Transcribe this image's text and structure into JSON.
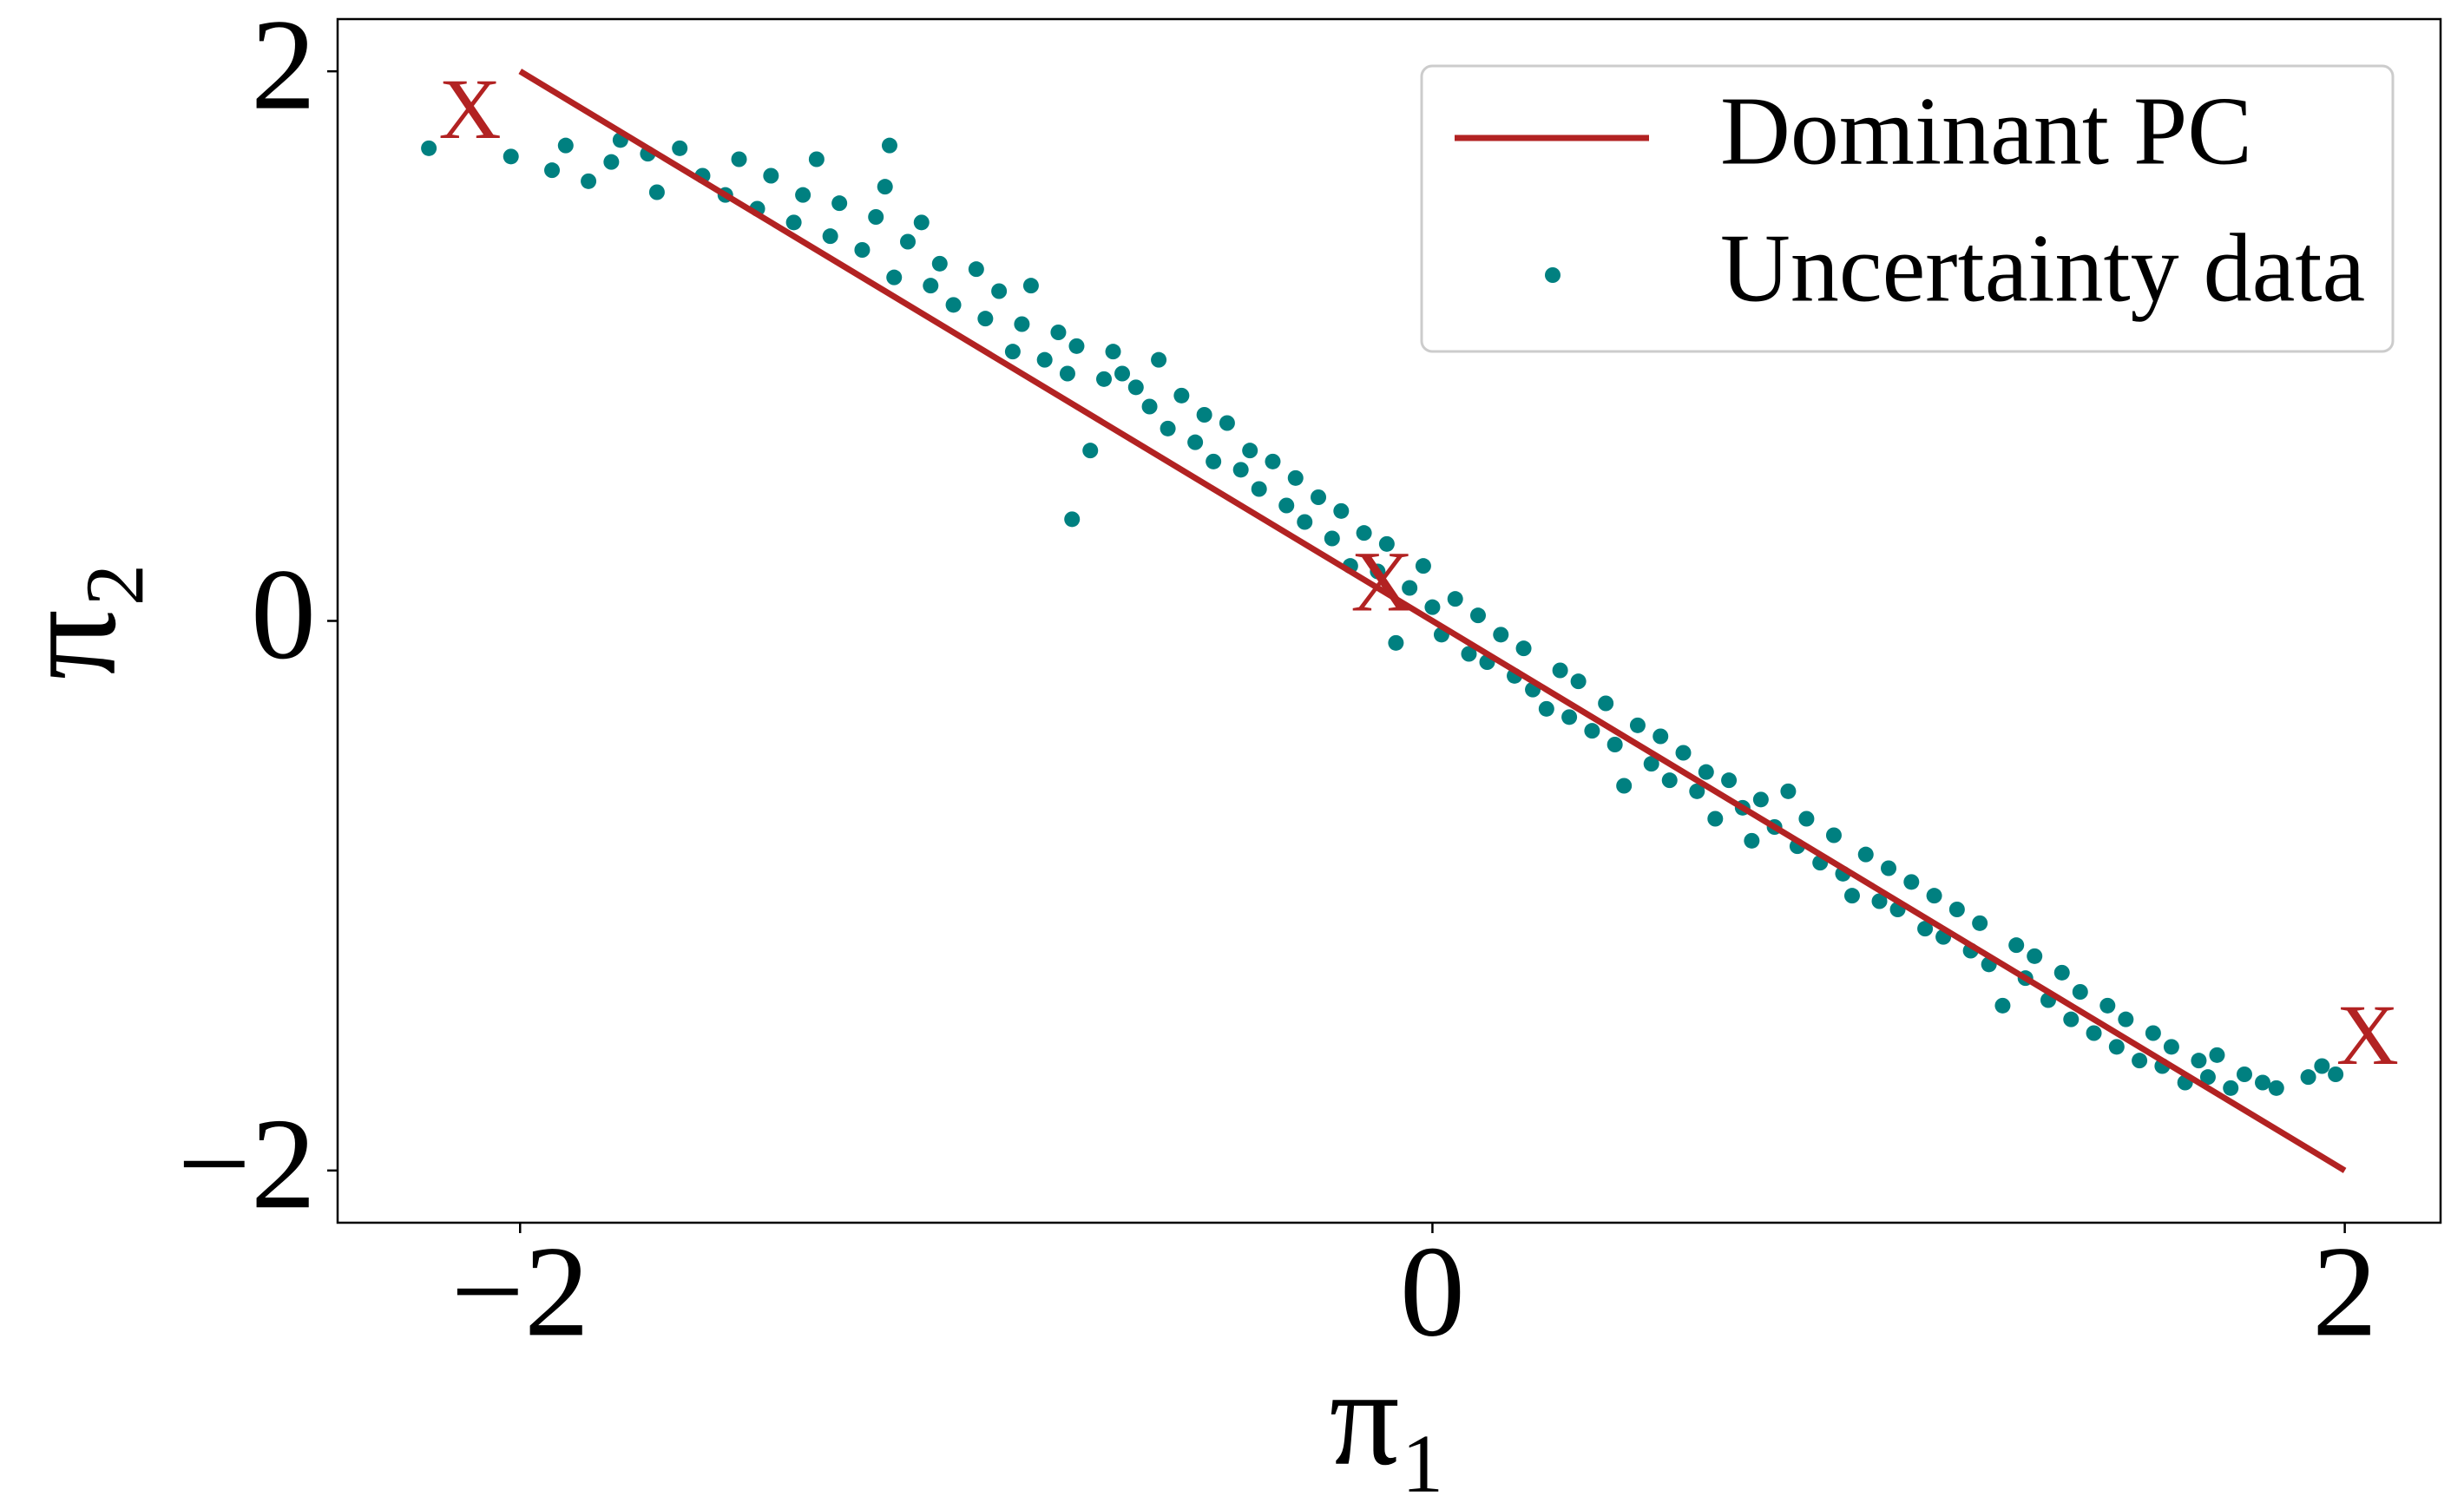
{
  "chart_data": {
    "type": "scatter",
    "xlabel": "π₁",
    "ylabel": "π₂",
    "xlim": [
      -2.4,
      2.21
    ],
    "ylim": [
      -2.19,
      2.19
    ],
    "xticks": [
      {
        "value": -2,
        "label": "−2"
      },
      0,
      2
    ],
    "yticks": [
      {
        "value": -2,
        "label": "−2"
      },
      0,
      2
    ],
    "legend": "upper right",
    "series": [
      {
        "name": "Dominant PC",
        "type": "line",
        "color": "#b22222",
        "x": [
          -2,
          2
        ],
        "values": [
          2,
          -2
        ]
      },
      {
        "name": "Uncertainty data",
        "type": "scatter",
        "color": "#008080",
        "x": [
          -2.2,
          -2.02,
          -1.93,
          -1.9,
          -1.85,
          -1.8,
          -1.78,
          -1.72,
          -1.7,
          -1.65,
          -1.6,
          -1.55,
          -1.52,
          -1.48,
          -1.45,
          -1.4,
          -1.38,
          -1.35,
          -1.32,
          -1.3,
          -1.25,
          -1.22,
          -1.2,
          -1.19,
          -1.18,
          -1.15,
          -1.12,
          -1.1,
          -1.08,
          -1.05,
          -1.0,
          -0.98,
          -0.95,
          -0.92,
          -0.9,
          -0.88,
          -0.85,
          -0.82,
          -0.8,
          -0.79,
          -0.78,
          -0.75,
          -0.72,
          -0.7,
          -0.68,
          -0.65,
          -0.62,
          -0.6,
          -0.58,
          -0.55,
          -0.52,
          -0.5,
          -0.48,
          -0.45,
          -0.42,
          -0.4,
          -0.38,
          -0.35,
          -0.32,
          -0.3,
          -0.28,
          -0.25,
          -0.22,
          -0.2,
          -0.18,
          -0.15,
          -0.12,
          -0.1,
          -0.08,
          -0.05,
          -0.02,
          0,
          0.02,
          0.05,
          0.08,
          0.1,
          0.12,
          0.15,
          0.18,
          0.2,
          0.22,
          0.25,
          0.28,
          0.3,
          0.32,
          0.35,
          0.38,
          0.4,
          0.42,
          0.45,
          0.48,
          0.5,
          0.52,
          0.55,
          0.58,
          0.6,
          0.62,
          0.65,
          0.68,
          0.7,
          0.72,
          0.75,
          0.78,
          0.8,
          0.82,
          0.85,
          0.88,
          0.9,
          0.92,
          0.95,
          0.98,
          1.0,
          1.02,
          1.05,
          1.08,
          1.1,
          1.12,
          1.15,
          1.18,
          1.2,
          1.22,
          1.25,
          1.28,
          1.3,
          1.32,
          1.35,
          1.38,
          1.4,
          1.42,
          1.45,
          1.48,
          1.5,
          1.52,
          1.55,
          1.58,
          1.6,
          1.62,
          1.65,
          1.68,
          1.7,
          1.72,
          1.75,
          1.78,
          1.82,
          1.85,
          1.92,
          1.95,
          1.98
        ],
        "values": [
          1.72,
          1.69,
          1.64,
          1.73,
          1.6,
          1.67,
          1.75,
          1.7,
          1.56,
          1.72,
          1.62,
          1.55,
          1.68,
          1.5,
          1.62,
          1.45,
          1.55,
          1.68,
          1.4,
          1.52,
          1.35,
          1.47,
          1.58,
          1.73,
          1.25,
          1.38,
          1.45,
          1.22,
          1.3,
          1.15,
          1.28,
          1.1,
          1.2,
          0.98,
          1.08,
          1.22,
          0.95,
          1.05,
          0.9,
          0.37,
          1.0,
          0.62,
          0.88,
          0.98,
          0.9,
          0.85,
          0.78,
          0.95,
          0.7,
          0.82,
          0.65,
          0.75,
          0.58,
          0.72,
          0.55,
          0.62,
          0.48,
          0.58,
          0.42,
          0.52,
          0.36,
          0.45,
          0.3,
          0.4,
          0.2,
          0.32,
          0.18,
          0.28,
          -0.08,
          0.12,
          0.2,
          0.05,
          -0.05,
          0.08,
          -0.12,
          0.02,
          -0.15,
          -0.05,
          -0.2,
          -0.1,
          -0.25,
          -0.32,
          -0.18,
          -0.35,
          -0.22,
          -0.4,
          -0.3,
          -0.45,
          -0.6,
          -0.38,
          -0.52,
          -0.42,
          -0.58,
          -0.48,
          -0.62,
          -0.55,
          -0.72,
          -0.58,
          -0.68,
          -0.8,
          -0.65,
          -0.75,
          -0.62,
          -0.82,
          -0.72,
          -0.88,
          -0.78,
          -0.92,
          -1.0,
          -0.85,
          -1.02,
          -0.9,
          -1.05,
          -0.95,
          -1.12,
          -1.0,
          -1.15,
          -1.05,
          -1.2,
          -1.1,
          -1.25,
          -1.4,
          -1.18,
          -1.3,
          -1.22,
          -1.38,
          -1.28,
          -1.45,
          -1.35,
          -1.5,
          -1.4,
          -1.55,
          -1.45,
          -1.6,
          -1.5,
          -1.62,
          -1.55,
          -1.68,
          -1.6,
          -1.66,
          -1.58,
          -1.7,
          -1.65,
          -1.68,
          -1.7,
          -1.66,
          -1.62,
          -1.65
        ]
      }
    ],
    "annotations": [
      {
        "text": "X",
        "x": -2.11,
        "y": 1.83,
        "color": "#b22222"
      },
      {
        "text": "X",
        "x": -0.11,
        "y": 0.11,
        "color": "#b22222"
      },
      {
        "text": "X",
        "x": 2.05,
        "y": -1.54,
        "color": "#b22222"
      }
    ]
  }
}
